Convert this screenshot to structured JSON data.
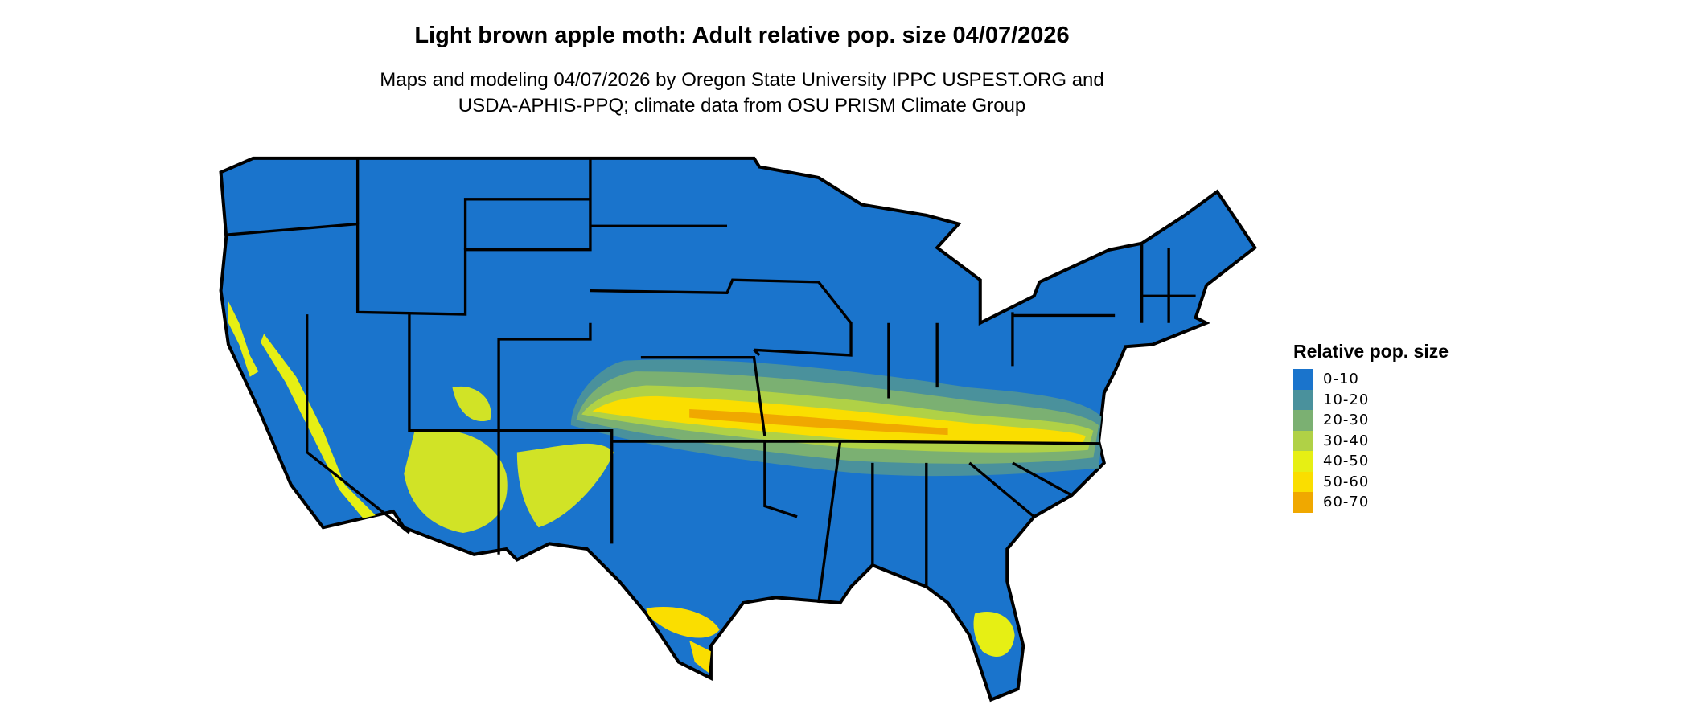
{
  "title": "Light brown apple moth: Adult relative pop. size 04/07/2026",
  "subtitle_line1": "Maps and modeling 04/07/2026 by Oregon State University IPPC USPEST.ORG and",
  "subtitle_line2": "USDA-APHIS-PPQ; climate data from OSU PRISM Climate Group",
  "legend": {
    "title": "Relative pop. size",
    "items": [
      {
        "label": "0-10",
        "color": "#1a74cc"
      },
      {
        "label": "10-20",
        "color": "#4a919c"
      },
      {
        "label": "20-30",
        "color": "#7bb072"
      },
      {
        "label": "30-40",
        "color": "#b0d146"
      },
      {
        "label": "40-50",
        "color": "#e6ef14"
      },
      {
        "label": "50-60",
        "color": "#fade00"
      },
      {
        "label": "60-70",
        "color": "#f0a800"
      }
    ]
  }
}
